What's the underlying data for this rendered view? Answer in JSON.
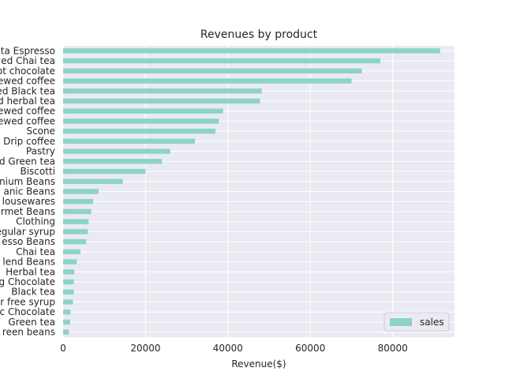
{
  "chart_data": {
    "type": "bar",
    "orientation": "horizontal",
    "title": "Revenues by product",
    "xlabel": "Revenue($)",
    "ylabel": "",
    "xlim": [
      0,
      95000
    ],
    "xticks": [
      0,
      20000,
      40000,
      60000,
      80000
    ],
    "grid": true,
    "legend_position": "lower-right",
    "series": [
      {
        "name": "sales",
        "color": "#8dd3c7",
        "categories": [
          "Sustainably Grown Organic Beans... Ouro Brasileiro Shot Espresso",
          "Brewed Chai tea",
          "Hot chocolate",
          "Gourmet brewed coffee",
          "Brewed Black tea",
          "Brewed herbal tea",
          "Barista Espresso brewed coffee",
          "Organic brewed coffee",
          "Scone",
          "Drip coffee",
          "Pastry",
          "Brewed Green tea",
          "Biscotti",
          "Premium Beans",
          "Organic Beans",
          "Housewares",
          "Gourmet Beans",
          "Clothing",
          "Regular syrup",
          "Espresso Beans",
          "Chai tea",
          "House blend Beans",
          "Herbal tea",
          "Drinking Chocolate",
          "Black tea",
          "Sugar free syrup",
          "Organic Chocolate",
          "Green tea",
          "Green beans"
        ],
        "labels_visible": [
          "ta Espresso",
          "ed Chai tea",
          "ot chocolate",
          "ewed coffee",
          "ed Black tea",
          "d herbal tea",
          "ewed coffee",
          "ewed coffee",
          "Scone",
          "Drip coffee",
          "Pastry",
          "d Green tea",
          "Biscotti",
          "nium Beans",
          "anic Beans",
          "lousewares",
          "rmet Beans",
          "Clothing",
          "egular syrup",
          "esso Beans",
          "Chai tea",
          "lend Beans",
          "Herbal tea",
          "g Chocolate",
          "Black tea",
          "r free syrup",
          "c Chocolate",
          "Green tea",
          "reen beans"
        ],
        "values": [
          91500,
          77000,
          72500,
          70000,
          48200,
          47800,
          38800,
          37800,
          37000,
          32000,
          26000,
          24000,
          20000,
          14500,
          8600,
          7300,
          6800,
          6200,
          6000,
          5600,
          4200,
          3300,
          2700,
          2600,
          2600,
          2400,
          1800,
          1700,
          1400
        ]
      }
    ]
  }
}
